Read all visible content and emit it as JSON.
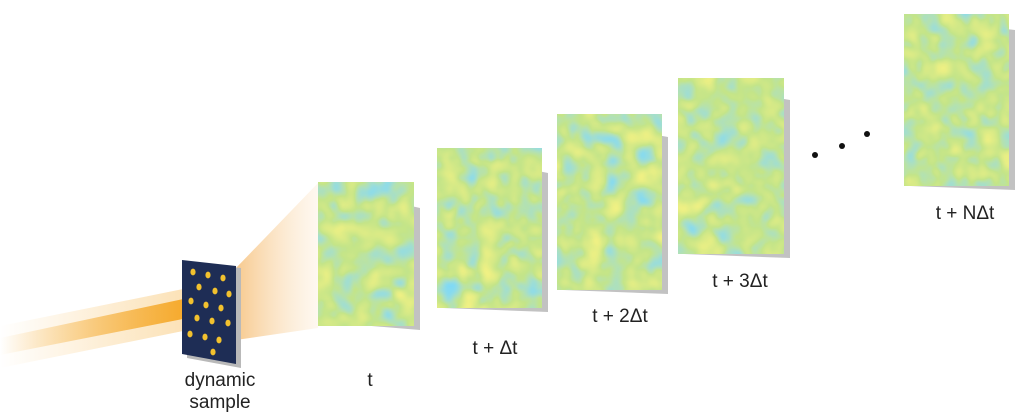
{
  "labels": {
    "sample_line1": "dynamic",
    "sample_line2": "sample",
    "frame_t0": "t",
    "frame_t1": "t + Δt",
    "frame_t2": "t + 2Δt",
    "frame_t3": "t + 3Δt",
    "frame_tn": "t + NΔt"
  },
  "colors": {
    "beam": "#f5a623",
    "sample_bg": "#1e2d55",
    "sample_spot": "#f2c12e",
    "speckle_green": "#8ec63f",
    "speckle_yellow": "#e6e23a",
    "speckle_cyan": "#39b4e8",
    "speckle_blue": "#1f3f9e",
    "frame_backing": "#b8b8b8"
  }
}
